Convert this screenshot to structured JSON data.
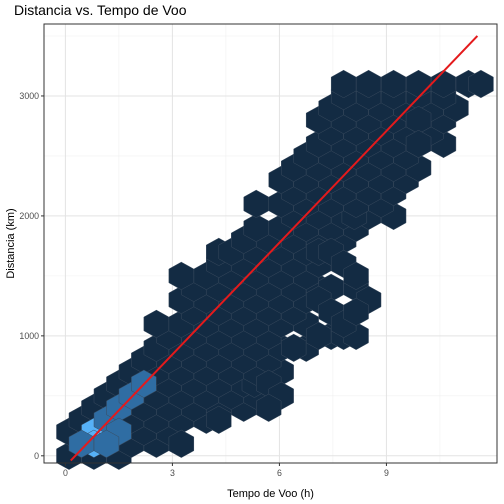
{
  "chart_data": {
    "type": "hexbin",
    "title": "Distancia vs. Tempo de Voo",
    "xlabel": "Tempo de Voo (h)",
    "ylabel": "Distancia (km)",
    "xlim": [
      -0.6,
      12.1
    ],
    "ylim": [
      -60,
      3600
    ],
    "x_ticks": [
      0,
      3,
      6,
      9
    ],
    "y_ticks": [
      0,
      1000,
      2000,
      3000
    ],
    "x_tick_labels": [
      "0",
      "3",
      "6",
      "9"
    ],
    "y_tick_labels": [
      "0",
      "1000",
      "2000",
      "3000"
    ],
    "grid": true,
    "hex_colors": {
      "low": "#132b43",
      "mid": "#2f6da3",
      "high": "#56b1f7",
      "edge": "#3a4b5e"
    },
    "fit_line": {
      "color": "#e41a1c",
      "x": [
        0.15,
        11.55
      ],
      "y": [
        -40,
        3500
      ]
    },
    "hex_rows": [
      {
        "y": 0,
        "x": [
          0.1,
          0.8,
          1.5
        ]
      },
      {
        "y": 100,
        "x": [
          0.45,
          1.15,
          1.85,
          2.55
        ]
      },
      {
        "y": 200,
        "x": [
          0.1,
          0.8,
          1.5,
          2.2,
          2.9
        ]
      },
      {
        "y": 300,
        "x": [
          0.45,
          1.15,
          1.85,
          2.55,
          3.25,
          3.95
        ]
      },
      {
        "y": 400,
        "x": [
          0.8,
          1.5,
          2.2,
          2.9,
          3.6,
          4.3,
          5.0
        ]
      },
      {
        "y": 500,
        "x": [
          1.15,
          1.85,
          2.55,
          3.25,
          3.95,
          4.65,
          5.35
        ]
      },
      {
        "y": 600,
        "x": [
          1.5,
          2.2,
          2.9,
          3.6,
          4.3,
          5.0,
          5.7,
          5.3
        ]
      },
      {
        "y": 700,
        "x": [
          1.85,
          2.55,
          3.25,
          3.95,
          4.65,
          5.35,
          6.05
        ]
      },
      {
        "y": 800,
        "x": [
          2.2,
          2.9,
          3.6,
          4.3,
          5.0,
          5.7
        ]
      },
      {
        "y": 900,
        "x": [
          2.55,
          3.25,
          3.95,
          4.65,
          5.35,
          6.05,
          6.75
        ]
      },
      {
        "y": 1000,
        "x": [
          2.9,
          3.6,
          4.3,
          5.0,
          5.7,
          7.45
        ]
      },
      {
        "y": 1100,
        "x": [
          2.55,
          3.25,
          3.95,
          4.65,
          5.35,
          6.05,
          6.75
        ]
      },
      {
        "y": 1200,
        "x": [
          3.6,
          4.3,
          5.0,
          5.7,
          6.4
        ]
      },
      {
        "y": 1300,
        "x": [
          3.25,
          3.95,
          4.65,
          5.35,
          6.05,
          6.75
        ]
      },
      {
        "y": 1400,
        "x": [
          3.6,
          4.3,
          5.0,
          5.7,
          6.4,
          7.1
        ]
      },
      {
        "y": 1500,
        "x": [
          3.25,
          3.95,
          4.65,
          5.35,
          6.05,
          6.75
        ]
      },
      {
        "y": 1600,
        "x": [
          4.3,
          5.0,
          5.7,
          6.4,
          7.1
        ]
      },
      {
        "y": 1700,
        "x": [
          4.3,
          4.65,
          5.35,
          6.05,
          6.75,
          7.45
        ]
      },
      {
        "y": 1800,
        "x": [
          5.0,
          5.7,
          6.4,
          7.1,
          7.8
        ]
      },
      {
        "y": 1900,
        "x": [
          5.35,
          6.05,
          6.75,
          7.45,
          8.15
        ]
      },
      {
        "y": 2000,
        "x": [
          6.4,
          7.1,
          7.8,
          8.5,
          9.2,
          8.1
        ]
      },
      {
        "y": 2100,
        "x": [
          5.35,
          6.05,
          6.75,
          7.45,
          8.15,
          8.85
        ]
      },
      {
        "y": 2200,
        "x": [
          6.4,
          7.1,
          7.8,
          8.5,
          9.2
        ]
      },
      {
        "y": 2300,
        "x": [
          6.05,
          6.75,
          7.45,
          8.15,
          8.85,
          9.55
        ]
      },
      {
        "y": 2400,
        "x": [
          6.4,
          7.1,
          7.8,
          8.5,
          9.2,
          9.9
        ]
      },
      {
        "y": 2500,
        "x": [
          6.75,
          7.45,
          8.15,
          8.85,
          9.55
        ]
      },
      {
        "y": 2600,
        "x": [
          7.1,
          7.8,
          8.5,
          9.2,
          9.9,
          10.6
        ]
      },
      {
        "y": 2700,
        "x": [
          7.45,
          8.15,
          8.85,
          9.55,
          10.25
        ]
      },
      {
        "y": 2800,
        "x": [
          7.1,
          7.8,
          8.5,
          9.2,
          9.9,
          10.6
        ]
      },
      {
        "y": 2900,
        "x": [
          7.45,
          8.15,
          8.85,
          9.55,
          10.25,
          10.95
        ]
      },
      {
        "y": 3000,
        "x": [
          7.8,
          8.5,
          9.2,
          9.9,
          10.6
        ]
      },
      {
        "y": 3100,
        "x": [
          7.8,
          8.5,
          9.2,
          9.9,
          10.6,
          11.3,
          11.65
        ]
      },
      {
        "y": 2800,
        "x": [
          9.9
        ]
      },
      {
        "y": 2600,
        "x": [
          9.9
        ]
      },
      {
        "y": 1700,
        "x": [
          7.1,
          7.45
        ]
      },
      {
        "y": 1600,
        "x": [
          7.8
        ]
      },
      {
        "y": 1400,
        "x": [
          7.45
        ]
      },
      {
        "y": 1300,
        "x": [
          7.1
        ]
      },
      {
        "y": 1200,
        "x": [
          7.45
        ]
      },
      {
        "y": 1000,
        "x": [
          7.1,
          7.8
        ]
      },
      {
        "y": 900,
        "x": [
          6.4
        ]
      },
      {
        "y": 600,
        "x": [
          5.7
        ]
      },
      {
        "y": 500,
        "x": [
          6.05
        ]
      },
      {
        "y": 400,
        "x": [
          5.7
        ]
      },
      {
        "y": 300,
        "x": [
          4.3
        ]
      },
      {
        "y": 100,
        "x": [
          3.25
        ]
      },
      {
        "y": 1000,
        "x": [
          8.15
        ]
      },
      {
        "y": 1100,
        "x": [
          7.8
        ]
      },
      {
        "y": 1400,
        "x": [
          8.15
        ]
      },
      {
        "y": 1500,
        "x": [
          8.15
        ]
      },
      {
        "y": 1300,
        "x": [
          8.5
        ]
      },
      {
        "y": 1200,
        "x": [
          8.15
        ]
      }
    ],
    "dense_hexes": [
      {
        "x": 0.8,
        "y": 200,
        "level": "high"
      },
      {
        "x": 0.8,
        "y": 100,
        "level": "high"
      },
      {
        "x": 1.15,
        "y": 300,
        "level": "mid"
      },
      {
        "x": 1.5,
        "y": 400,
        "level": "mid"
      },
      {
        "x": 1.85,
        "y": 500,
        "level": "mid"
      },
      {
        "x": 2.2,
        "y": 600,
        "level": "mid"
      },
      {
        "x": 1.5,
        "y": 200,
        "level": "mid"
      },
      {
        "x": 0.45,
        "y": 100,
        "level": "mid"
      },
      {
        "x": 1.15,
        "y": 100,
        "level": "mid"
      }
    ]
  }
}
